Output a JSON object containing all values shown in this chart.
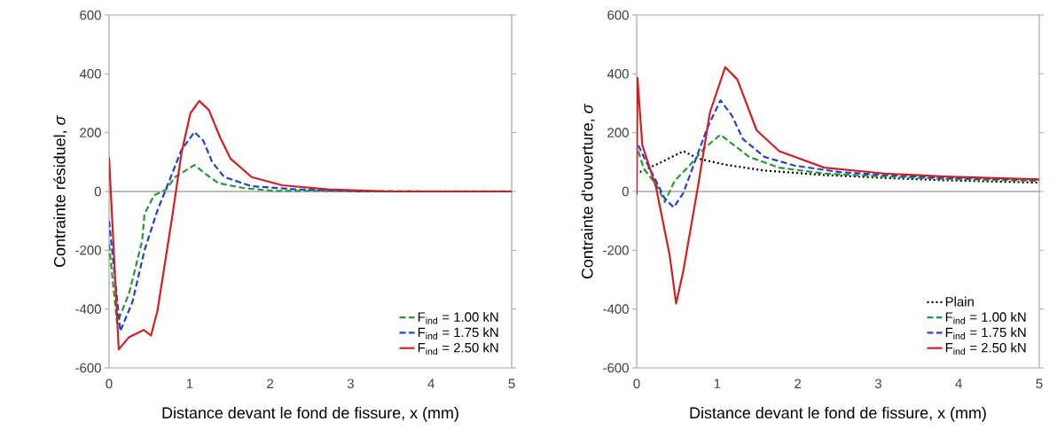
{
  "chart_data": [
    {
      "type": "line",
      "xlabel": "Distance devant le fond de fissure, x (mm)",
      "ylabel": "Contrainte résiduel, *σ*",
      "xlim": [
        0,
        5
      ],
      "ylim": [
        -600,
        600
      ],
      "xticks": [
        0,
        1,
        2,
        3,
        4,
        5
      ],
      "yticks": [
        -600,
        -400,
        -200,
        0,
        200,
        400,
        600
      ],
      "grid": false,
      "legend": "bottom right",
      "marker": "none",
      "ref_lines": [
        {
          "axis": "y",
          "value": 0,
          "color": "#a6a6a6"
        }
      ],
      "series": [
        {
          "name": "F$_{ind}$ = 1.00 kN",
          "color": "#1e9e30",
          "line_style": "dashed",
          "x": [
            0,
            0.1,
            0.25,
            0.41,
            0.44,
            0.56,
            0.71,
            0.82,
            1.06,
            1.2,
            1.36,
            1.66,
            2.04,
            5
          ],
          "values": [
            -180,
            -449,
            -345,
            -169,
            -76,
            -13,
            7,
            49,
            90,
            59,
            28,
            12,
            2,
            0
          ]
        },
        {
          "name": "F$_{ind}$ = 1.75 kN",
          "color": "#2040e0",
          "line_style": "dashed",
          "x": [
            0,
            0.14,
            0.29,
            0.44,
            0.6,
            0.75,
            0.9,
            1.06,
            1.17,
            1.28,
            1.43,
            1.77,
            2.34,
            3.1,
            5
          ],
          "values": [
            -100,
            -475,
            -376,
            -200,
            -65,
            38,
            142,
            202,
            173,
            100,
            49,
            18,
            7,
            0,
            0
          ]
        },
        {
          "name": "F$_{ind}$ = 2.50 kN",
          "color": "#d02020",
          "line_style": "solid",
          "x": [
            0,
            0.12,
            0.25,
            0.43,
            0.52,
            0.6,
            0.79,
            0.9,
            1.01,
            1.12,
            1.24,
            1.38,
            1.51,
            1.77,
            2.15,
            2.72,
            3.48,
            5
          ],
          "values": [
            115,
            -537,
            -495,
            -471,
            -490,
            -407,
            -76,
            132,
            266,
            308,
            277,
            183,
            111,
            49,
            21,
            7,
            0,
            0
          ]
        }
      ]
    },
    {
      "type": "line",
      "xlabel": "Distance devant le fond de fissure, x (mm)",
      "ylabel": "Contrainte d'ouverture, *σ*",
      "xlim": [
        0,
        5
      ],
      "ylim": [
        -600,
        600
      ],
      "xticks": [
        0,
        1,
        2,
        3,
        4,
        5
      ],
      "yticks": [
        -600,
        -400,
        -200,
        0,
        200,
        400,
        600
      ],
      "grid": false,
      "legend": "bottom right",
      "marker": "none",
      "ref_lines": [
        {
          "axis": "y",
          "value": 0,
          "color": "#a6a6a6"
        }
      ],
      "series": [
        {
          "name": "Plain",
          "color": "#000000",
          "line_style": "dotted",
          "x": [
            0.04,
            0.28,
            0.58,
            0.76,
            1.1,
            1.59,
            2.33,
            3.08,
            3.82,
            5
          ],
          "values": [
            66,
            96,
            137,
            112,
            91,
            71,
            56,
            46,
            38,
            30
          ]
        },
        {
          "name": "F$_{ind}$ = 1.00 kN",
          "color": "#1e9e30",
          "line_style": "dashed",
          "x": [
            0.02,
            0.09,
            0.24,
            0.35,
            0.47,
            0.65,
            0.84,
            1.04,
            1.21,
            1.4,
            1.77,
            2.33,
            3.08,
            3.82,
            5
          ],
          "values": [
            137,
            76,
            25,
            -36,
            36,
            86,
            147,
            193,
            157,
            117,
            81,
            61,
            51,
            43,
            36
          ]
        },
        {
          "name": "F$_{ind}$ = 1.75 kN",
          "color": "#2040e0",
          "line_style": "dashed",
          "x": [
            0.02,
            0.09,
            0.24,
            0.35,
            0.46,
            0.58,
            0.73,
            0.88,
            1.04,
            1.18,
            1.32,
            1.59,
            1.96,
            2.52,
            3.08,
            3.82,
            5
          ],
          "values": [
            157,
            117,
            36,
            -25,
            -54,
            -5,
            107,
            218,
            310,
            259,
            178,
            117,
            88,
            66,
            56,
            46,
            40
          ]
        },
        {
          "name": "F$_{ind}$ = 2.50 kN",
          "color": "#d02020",
          "line_style": "solid",
          "x": [
            0,
            0.01,
            0.07,
            0.24,
            0.41,
            0.49,
            0.58,
            0.76,
            0.91,
            1.1,
            1.25,
            1.49,
            1.77,
            2.33,
            3.08,
            3.82,
            5
          ],
          "values": [
            -10,
            386,
            157,
            15,
            -218,
            -381,
            -269,
            15,
            269,
            423,
            381,
            208,
            137,
            81,
            61,
            51,
            41
          ]
        }
      ]
    }
  ]
}
